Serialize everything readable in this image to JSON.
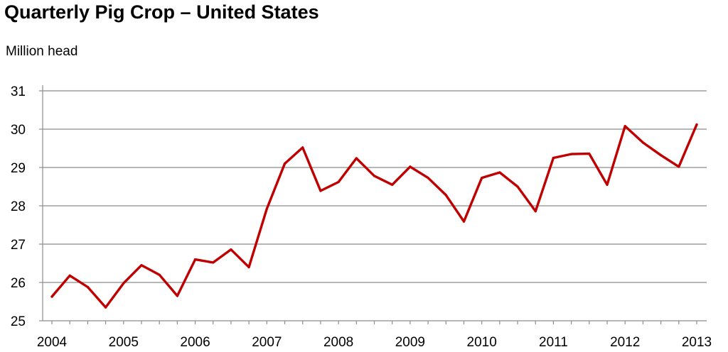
{
  "chart_data": {
    "type": "line",
    "title": "Quarterly Pig Crop – United States",
    "ylabel": "Million head",
    "xlabel": "",
    "ylim": [
      25,
      31
    ],
    "yticks": [
      25,
      26,
      27,
      28,
      29,
      30,
      31
    ],
    "xticks": [
      "2004",
      "2005",
      "2006",
      "2007",
      "2008",
      "2009",
      "2010",
      "2011",
      "2012",
      "2013"
    ],
    "x_range": [
      2004,
      2013
    ],
    "grid": "horizontal",
    "legend": "none",
    "series": [
      {
        "color": "#c00000",
        "points": [
          {
            "x": 2004.0,
            "y": 25.63
          },
          {
            "x": 2004.25,
            "y": 26.18
          },
          {
            "x": 2004.5,
            "y": 25.88
          },
          {
            "x": 2004.75,
            "y": 25.35
          },
          {
            "x": 2005.0,
            "y": 25.98
          },
          {
            "x": 2005.25,
            "y": 26.45
          },
          {
            "x": 2005.5,
            "y": 26.2
          },
          {
            "x": 2005.75,
            "y": 25.65
          },
          {
            "x": 2006.0,
            "y": 26.6
          },
          {
            "x": 2006.25,
            "y": 26.52
          },
          {
            "x": 2006.5,
            "y": 26.86
          },
          {
            "x": 2006.75,
            "y": 26.4
          },
          {
            "x": 2007.0,
            "y": 27.92
          },
          {
            "x": 2007.25,
            "y": 29.1
          },
          {
            "x": 2007.5,
            "y": 29.52
          },
          {
            "x": 2007.75,
            "y": 28.39
          },
          {
            "x": 2008.0,
            "y": 28.62
          },
          {
            "x": 2008.25,
            "y": 29.24
          },
          {
            "x": 2008.5,
            "y": 28.78
          },
          {
            "x": 2008.75,
            "y": 28.55
          },
          {
            "x": 2009.0,
            "y": 29.02
          },
          {
            "x": 2009.25,
            "y": 28.73
          },
          {
            "x": 2009.5,
            "y": 28.28
          },
          {
            "x": 2009.75,
            "y": 27.59
          },
          {
            "x": 2010.0,
            "y": 28.73
          },
          {
            "x": 2010.25,
            "y": 28.87
          },
          {
            "x": 2010.5,
            "y": 28.5
          },
          {
            "x": 2010.75,
            "y": 27.86
          },
          {
            "x": 2011.0,
            "y": 29.25
          },
          {
            "x": 2011.25,
            "y": 29.35
          },
          {
            "x": 2011.5,
            "y": 29.36
          },
          {
            "x": 2011.75,
            "y": 28.55
          },
          {
            "x": 2012.0,
            "y": 30.08
          },
          {
            "x": 2012.25,
            "y": 29.65
          },
          {
            "x": 2012.5,
            "y": 29.32
          },
          {
            "x": 2012.75,
            "y": 29.02
          },
          {
            "x": 2013.0,
            "y": 30.12
          }
        ]
      }
    ]
  }
}
